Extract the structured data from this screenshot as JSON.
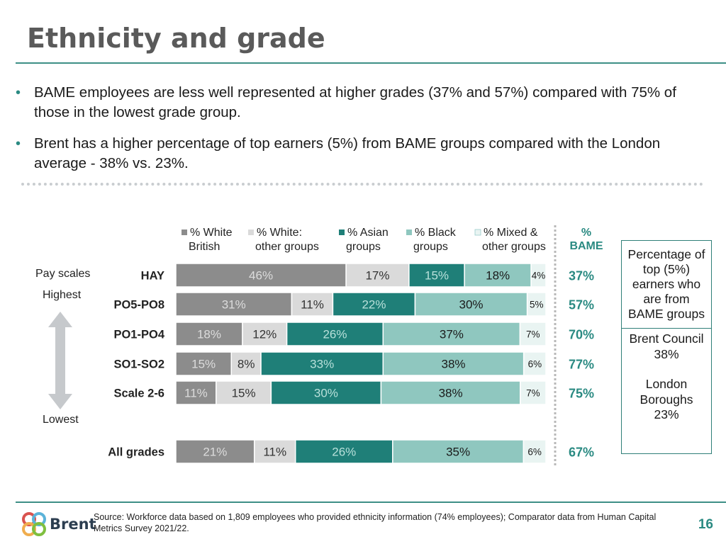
{
  "title": "Ethnicity and grade",
  "bullets": [
    "BAME employees are less well represented at higher grades (37% and 57%) compared with 75% of those in the lowest grade group.",
    "Brent has a higher percentage of top earners (5%) from BAME groups compared with the London average - 38% vs. 23%."
  ],
  "axis": {
    "pay_scales": "Pay scales",
    "highest": "Highest",
    "lowest": "Lowest"
  },
  "side_box": {
    "heading": "Percentage of top (5%) earners who are from BAME groups",
    "brent_label": "Brent Council",
    "brent_value": "38%",
    "london_label": "London Boroughs",
    "london_value": "23%"
  },
  "footer": {
    "source": "Source: Workforce data based on 1,809 employees who provided ethnicity information (74% employees); Comparator data from Human Capital Metrics Survey 2021/22.",
    "page_number": "16",
    "logo_text": "Brent"
  },
  "colors": {
    "white_british": "#8c8c8c",
    "white_other": "#dadada",
    "asian": "#1f7f78",
    "black": "#8fc7bf",
    "mixed": "#e9f4f2",
    "accent": "#2a8a82"
  },
  "chart_data": {
    "type": "bar",
    "orientation": "horizontal",
    "stacked": true,
    "percent_column_header": "% BAME",
    "categories": [
      "HAY",
      "PO5-PO8",
      "PO1-PO4",
      "SO1-SO2",
      "Scale 2-6",
      "All grades"
    ],
    "series": [
      {
        "name": "% White British",
        "legend": [
          "% White",
          "British"
        ],
        "values": [
          46,
          31,
          18,
          15,
          11,
          21
        ],
        "labels": [
          "46%",
          "31%",
          "18%",
          "15%",
          "11%",
          "21%"
        ]
      },
      {
        "name": "% White: other groups",
        "legend": [
          "% White:",
          "other groups"
        ],
        "values": [
          17,
          11,
          12,
          8,
          15,
          11
        ],
        "labels": [
          "17%",
          "11%",
          "12%",
          "8%",
          "15%",
          "11%"
        ]
      },
      {
        "name": "% Asian groups",
        "legend": [
          "% Asian",
          "groups"
        ],
        "values": [
          15,
          22,
          26,
          33,
          30,
          26
        ],
        "labels": [
          "15%",
          "22%",
          "26%",
          "33%",
          "30%",
          "26%"
        ]
      },
      {
        "name": "% Black groups",
        "legend": [
          "% Black",
          "groups"
        ],
        "values": [
          18,
          30,
          37,
          38,
          38,
          35
        ],
        "labels": [
          "18%",
          "30%",
          "37%",
          "38%",
          "38%",
          "35%"
        ]
      },
      {
        "name": "% Mixed & other groups",
        "legend": [
          "% Mixed &",
          "other groups"
        ],
        "values": [
          4,
          5,
          7,
          6,
          7,
          6
        ],
        "labels": [
          "4%",
          "5%",
          "7%",
          "6%",
          "7%",
          "6%"
        ]
      }
    ],
    "bame_percent": [
      "37%",
      "57%",
      "70%",
      "77%",
      "75%",
      "67%"
    ],
    "percent_header_lines": [
      "%",
      "BAME"
    ]
  }
}
